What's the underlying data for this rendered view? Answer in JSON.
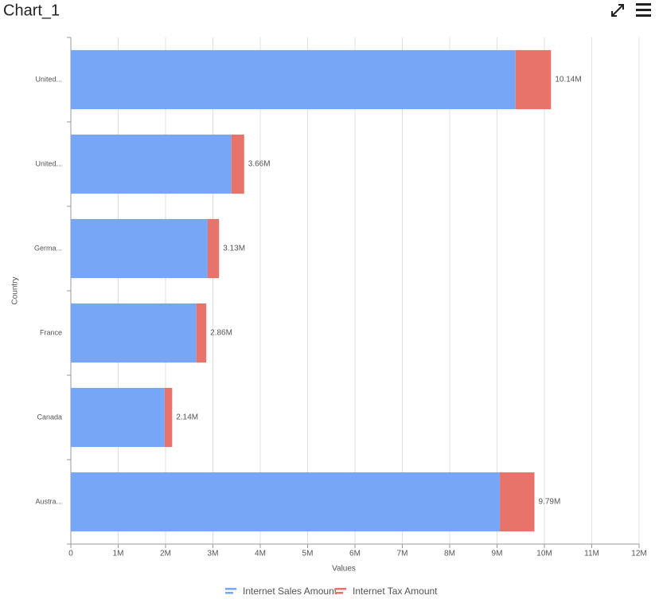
{
  "chart_data": {
    "type": "stacked-barh",
    "title": "Chart_1",
    "x_label": "Values",
    "y_label": "Country",
    "categories": [
      "United...",
      "United...",
      "Germa...",
      "France",
      "Canada",
      "Austra..."
    ],
    "series": [
      {
        "name": "Internet Sales Amount",
        "color": "#77a6f7",
        "values": [
          9390000,
          3390000,
          2890000,
          2650000,
          1980000,
          9060000
        ]
      },
      {
        "name": "Internet Tax Amount",
        "color": "#e8736a",
        "values": [
          750000,
          270000,
          240000,
          210000,
          160000,
          730000
        ]
      }
    ],
    "total_labels": [
      "10.14M",
      "3.66M",
      "3.13M",
      "2.86M",
      "2.14M",
      "9.79M"
    ],
    "xlim": [
      0,
      12000000
    ],
    "xticks": [
      0,
      {
        "value": 1000000,
        "label": "1M"
      },
      {
        "value": 2000000,
        "label": "2M"
      },
      {
        "value": 3000000,
        "label": "3M"
      },
      {
        "value": 4000000,
        "label": "4M"
      },
      {
        "value": 5000000,
        "label": "5M"
      },
      {
        "value": 6000000,
        "label": "6M"
      },
      {
        "value": 7000000,
        "label": "7M"
      },
      {
        "value": 8000000,
        "label": "8M"
      },
      {
        "value": 9000000,
        "label": "9M"
      },
      {
        "value": 10000000,
        "label": "10M"
      },
      {
        "value": 11000000,
        "label": "11M"
      },
      {
        "value": 12000000,
        "label": "12M"
      }
    ],
    "grid": true,
    "legend": "bottom"
  }
}
